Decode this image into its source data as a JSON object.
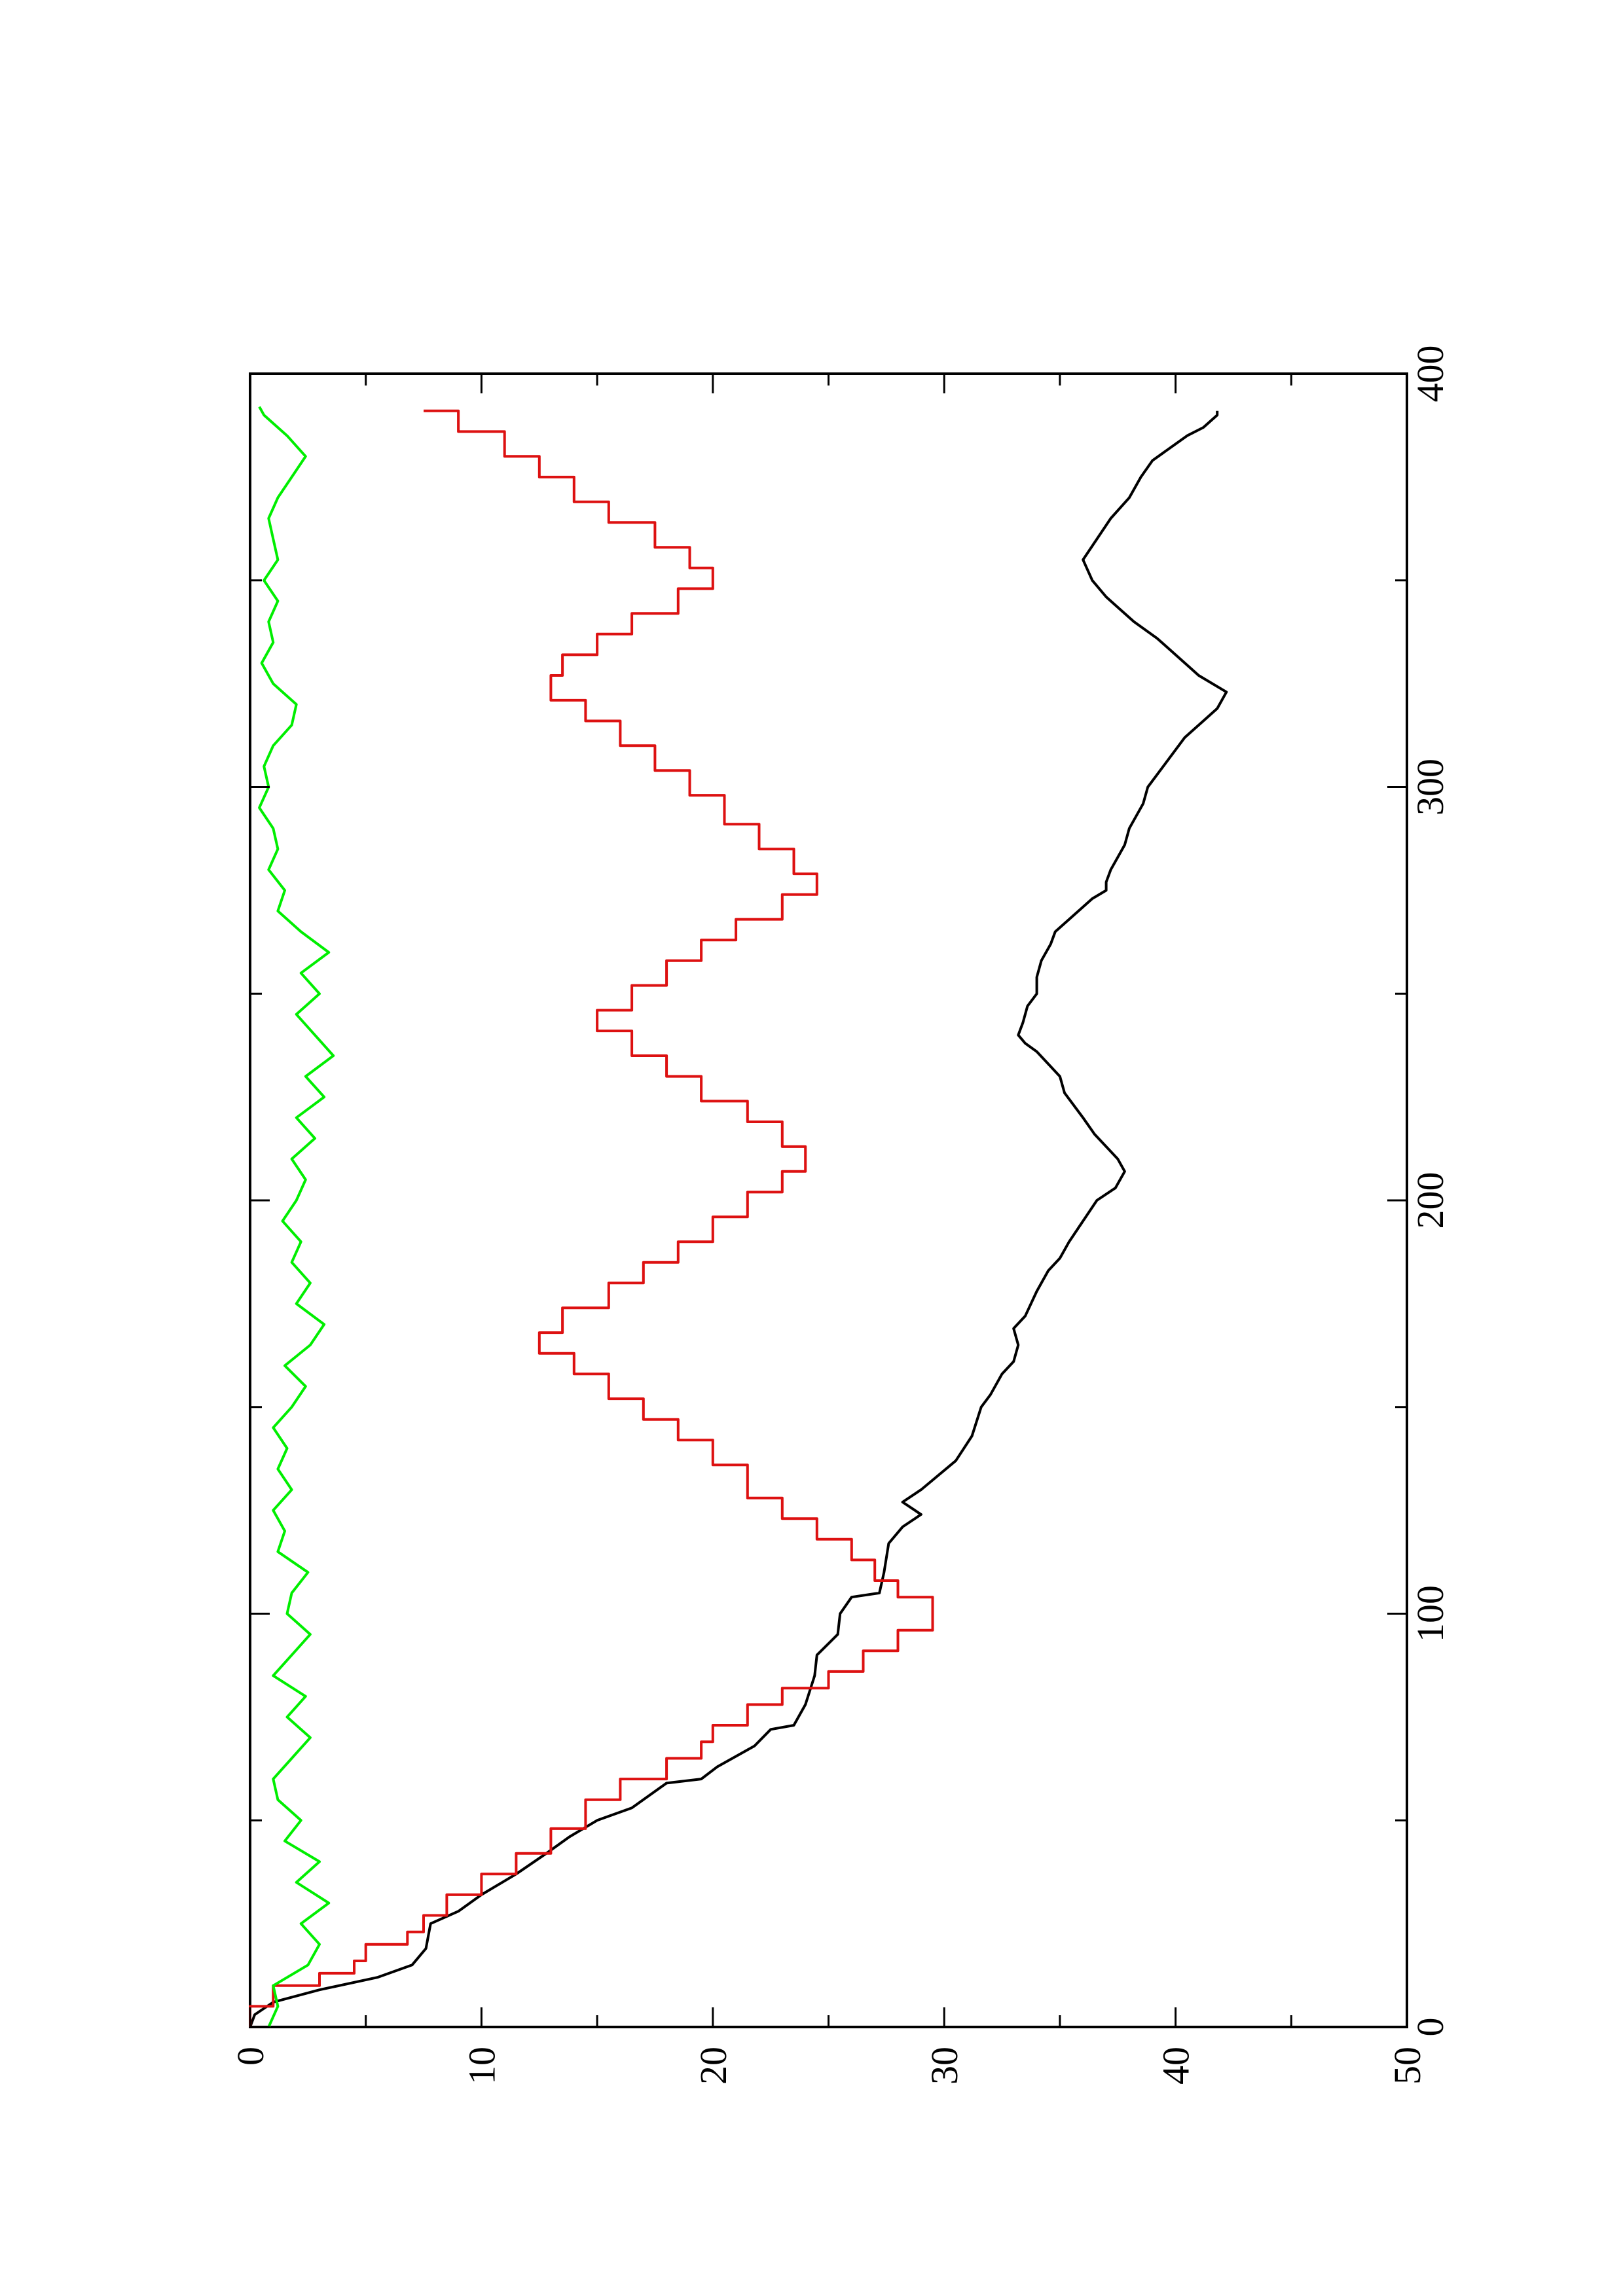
{
  "chart_data": {
    "type": "line",
    "orientation": "rotated 90° counter-clockwise (x axis runs up the page, y axis runs across)",
    "title": "",
    "xlabel": "",
    "ylabel": "",
    "xlim": [
      0,
      400
    ],
    "ylim": [
      0,
      50
    ],
    "x_ticks": [
      0,
      100,
      200,
      300,
      400
    ],
    "x_tick_labels": [
      "0",
      "100",
      "200",
      "300",
      "400"
    ],
    "x_minor_ticks": [
      50,
      150,
      250,
      350
    ],
    "y_ticks": [
      0,
      10,
      20,
      30,
      40,
      50
    ],
    "y_tick_labels": [
      "0",
      "10",
      "20",
      "30",
      "40",
      "50"
    ],
    "y_minor_ticks": [
      5,
      15,
      25,
      35,
      45
    ],
    "grid": false,
    "legend": "none",
    "series": [
      {
        "color": "#000000",
        "step": false,
        "points": [
          [
            0,
            0
          ],
          [
            3,
            0.2
          ],
          [
            6,
            1
          ],
          [
            9,
            3
          ],
          [
            12,
            5.5
          ],
          [
            15,
            7
          ],
          [
            19,
            7.6
          ],
          [
            25,
            7.8
          ],
          [
            28,
            9
          ],
          [
            32,
            10
          ],
          [
            37,
            11.5
          ],
          [
            42,
            12.8
          ],
          [
            46,
            13.8
          ],
          [
            50,
            15
          ],
          [
            53,
            16.5
          ],
          [
            57,
            17.5
          ],
          [
            59,
            18
          ],
          [
            60,
            19.5
          ],
          [
            63,
            20.2
          ],
          [
            68,
            21.8
          ],
          [
            72,
            22.5
          ],
          [
            73,
            23.5
          ],
          [
            78,
            24
          ],
          [
            85,
            24.4
          ],
          [
            90,
            24.5
          ],
          [
            95,
            25.4
          ],
          [
            100,
            25.5
          ],
          [
            104,
            26
          ],
          [
            105,
            27.2
          ],
          [
            110,
            27.4
          ],
          [
            117,
            27.6
          ],
          [
            121,
            28.2
          ],
          [
            124,
            29
          ],
          [
            127,
            28.2
          ],
          [
            130,
            29
          ],
          [
            137,
            30.5
          ],
          [
            143,
            31.2
          ],
          [
            150,
            31.6
          ],
          [
            153,
            32
          ],
          [
            158,
            32.5
          ],
          [
            161,
            33
          ],
          [
            165,
            33.2
          ],
          [
            169,
            33
          ],
          [
            172,
            33.5
          ],
          [
            178,
            34
          ],
          [
            183,
            34.5
          ],
          [
            186,
            35
          ],
          [
            190,
            35.4
          ],
          [
            195,
            36
          ],
          [
            200,
            36.6
          ],
          [
            203,
            37.4
          ],
          [
            207,
            37.8
          ],
          [
            210,
            37.5
          ],
          [
            213,
            37
          ],
          [
            216,
            36.5
          ],
          [
            220,
            36
          ],
          [
            226,
            35.2
          ],
          [
            230,
            35
          ],
          [
            233,
            34.5
          ],
          [
            236,
            34
          ],
          [
            238,
            33.5
          ],
          [
            240,
            33.2
          ],
          [
            243,
            33.4
          ],
          [
            247,
            33.6
          ],
          [
            250,
            34
          ],
          [
            254,
            34
          ],
          [
            258,
            34.2
          ],
          [
            262,
            34.6
          ],
          [
            265,
            34.8
          ],
          [
            268,
            35.4
          ],
          [
            273,
            36.4
          ],
          [
            275,
            37
          ],
          [
            277,
            37
          ],
          [
            280,
            37.2
          ],
          [
            286,
            37.8
          ],
          [
            290,
            38
          ],
          [
            296,
            38.6
          ],
          [
            300,
            38.8
          ],
          [
            306,
            39.6
          ],
          [
            312,
            40.4
          ],
          [
            316,
            41.2
          ],
          [
            319,
            41.8
          ],
          [
            323,
            42.2
          ],
          [
            327,
            41
          ],
          [
            331,
            40.2
          ],
          [
            336,
            39.2
          ],
          [
            340,
            38.2
          ],
          [
            343,
            37.6
          ],
          [
            346,
            37
          ],
          [
            350,
            36.4
          ],
          [
            355,
            36
          ],
          [
            360,
            36.6
          ],
          [
            365,
            37.2
          ],
          [
            370,
            38
          ],
          [
            375,
            38.5
          ],
          [
            379,
            39
          ],
          [
            383,
            40
          ],
          [
            385,
            40.5
          ],
          [
            387,
            41.2
          ],
          [
            390,
            41.8
          ],
          [
            391,
            41.8
          ]
        ]
      },
      {
        "color": "#dd1111",
        "step": true,
        "points": [
          [
            0,
            0
          ],
          [
            5,
            1
          ],
          [
            10,
            3
          ],
          [
            13,
            4.5
          ],
          [
            16,
            5
          ],
          [
            20,
            6.8
          ],
          [
            23,
            7.5
          ],
          [
            27,
            8.5
          ],
          [
            32,
            10
          ],
          [
            37,
            11.5
          ],
          [
            42,
            13
          ],
          [
            48,
            14.5
          ],
          [
            55,
            16
          ],
          [
            60,
            18
          ],
          [
            65,
            19.5
          ],
          [
            69,
            20
          ],
          [
            73,
            21.5
          ],
          [
            78,
            23
          ],
          [
            82,
            25
          ],
          [
            86,
            26.5
          ],
          [
            91,
            28
          ],
          [
            96,
            29.5
          ],
          [
            104,
            28
          ],
          [
            108,
            27
          ],
          [
            113,
            26
          ],
          [
            118,
            24.5
          ],
          [
            123,
            23
          ],
          [
            128,
            21.5
          ],
          [
            136,
            20
          ],
          [
            142,
            18.5
          ],
          [
            147,
            17
          ],
          [
            152,
            15.5
          ],
          [
            158,
            14
          ],
          [
            163,
            12.5
          ],
          [
            168,
            13.5
          ],
          [
            174,
            15.5
          ],
          [
            180,
            17
          ],
          [
            185,
            18.5
          ],
          [
            190,
            20
          ],
          [
            196,
            21.5
          ],
          [
            202,
            23
          ],
          [
            207,
            24
          ],
          [
            213,
            23
          ],
          [
            219,
            21.5
          ],
          [
            224,
            19.5
          ],
          [
            230,
            18
          ],
          [
            235,
            16.5
          ],
          [
            241,
            15
          ],
          [
            246,
            16.5
          ],
          [
            252,
            18
          ],
          [
            258,
            19.5
          ],
          [
            263,
            21
          ],
          [
            268,
            23
          ],
          [
            274,
            24.5
          ],
          [
            279,
            23.5
          ],
          [
            285,
            22
          ],
          [
            291,
            20.5
          ],
          [
            298,
            19
          ],
          [
            304,
            17.5
          ],
          [
            310,
            16
          ],
          [
            316,
            14.5
          ],
          [
            321,
            13
          ],
          [
            327,
            13.5
          ],
          [
            332,
            15
          ],
          [
            337,
            16.5
          ],
          [
            342,
            18.5
          ],
          [
            348,
            20
          ],
          [
            353,
            19
          ],
          [
            358,
            17.5
          ],
          [
            364,
            15.5
          ],
          [
            369,
            14
          ],
          [
            375,
            12.5
          ],
          [
            380,
            11
          ],
          [
            386,
            9
          ],
          [
            391,
            7.5
          ]
        ]
      },
      {
        "color": "#00ee00",
        "step": false,
        "points": [
          [
            0,
            0.8
          ],
          [
            5,
            1.2
          ],
          [
            10,
            1
          ],
          [
            15,
            2.5
          ],
          [
            20,
            3
          ],
          [
            25,
            2.2
          ],
          [
            30,
            3.4
          ],
          [
            35,
            2
          ],
          [
            40,
            3
          ],
          [
            45,
            1.5
          ],
          [
            50,
            2.2
          ],
          [
            55,
            1.2
          ],
          [
            60,
            1
          ],
          [
            65,
            1.8
          ],
          [
            70,
            2.6
          ],
          [
            75,
            1.6
          ],
          [
            80,
            2.4
          ],
          [
            85,
            1
          ],
          [
            90,
            1.8
          ],
          [
            95,
            2.6
          ],
          [
            100,
            1.6
          ],
          [
            105,
            1.8
          ],
          [
            110,
            2.5
          ],
          [
            115,
            1.2
          ],
          [
            120,
            1.5
          ],
          [
            125,
            1
          ],
          [
            130,
            1.8
          ],
          [
            135,
            1.2
          ],
          [
            140,
            1.6
          ],
          [
            145,
            1
          ],
          [
            150,
            1.8
          ],
          [
            155,
            2.4
          ],
          [
            160,
            1.5
          ],
          [
            165,
            2.6
          ],
          [
            170,
            3.2
          ],
          [
            175,
            2
          ],
          [
            180,
            2.6
          ],
          [
            185,
            1.8
          ],
          [
            190,
            2.2
          ],
          [
            195,
            1.4
          ],
          [
            200,
            2
          ],
          [
            205,
            2.4
          ],
          [
            210,
            1.8
          ],
          [
            215,
            2.8
          ],
          [
            220,
            2
          ],
          [
            225,
            3.2
          ],
          [
            230,
            2.4
          ],
          [
            235,
            3.6
          ],
          [
            240,
            2.8
          ],
          [
            245,
            2
          ],
          [
            250,
            3
          ],
          [
            255,
            2.2
          ],
          [
            260,
            3.4
          ],
          [
            265,
            2.2
          ],
          [
            270,
            1.2
          ],
          [
            275,
            1.5
          ],
          [
            280,
            0.8
          ],
          [
            285,
            1.2
          ],
          [
            290,
            1
          ],
          [
            295,
            0.4
          ],
          [
            300,
            0.8
          ],
          [
            305,
            0.6
          ],
          [
            310,
            1
          ],
          [
            315,
            1.8
          ],
          [
            320,
            2
          ],
          [
            325,
            1
          ],
          [
            330,
            0.5
          ],
          [
            335,
            1
          ],
          [
            340,
            0.8
          ],
          [
            345,
            1.2
          ],
          [
            350,
            0.6
          ],
          [
            355,
            1.2
          ],
          [
            360,
            1
          ],
          [
            365,
            0.8
          ],
          [
            370,
            1.2
          ],
          [
            375,
            1.8
          ],
          [
            380,
            2.4
          ],
          [
            385,
            1.6
          ],
          [
            390,
            0.6
          ],
          [
            392,
            0.4
          ]
        ]
      }
    ]
  }
}
